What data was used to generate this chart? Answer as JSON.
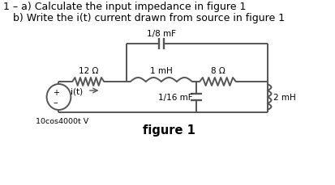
{
  "title_line1": "1 – a) Calculate the input impedance in figure 1",
  "title_line2": "   b) Write the i(t) current drawn from source in figure 1",
  "figure_label": "figure 1",
  "bg_color": "#ffffff",
  "text_color": "#000000",
  "line_color": "#555555",
  "title_fontsize": 9.0,
  "fig_label_fontsize": 10.5,
  "comp_fontsize": 7.5
}
